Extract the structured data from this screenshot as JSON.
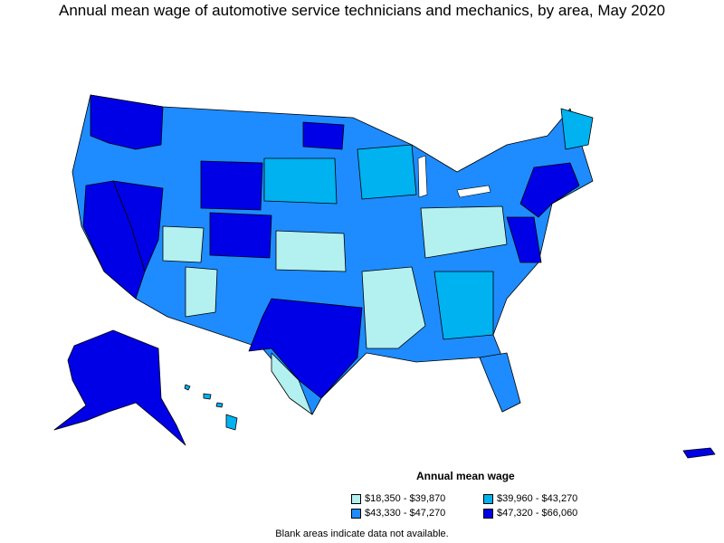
{
  "title": "Annual mean wage of automotive service technicians and mechanics, by area, May 2020",
  "legend": {
    "title": "Annual mean wage",
    "items": [
      {
        "label": "$18,350 - $39,870",
        "color": "#b3f0f0"
      },
      {
        "label": "$39,960 - $43,270",
        "color": "#00b2f0"
      },
      {
        "label": "$43,330 - $47,270",
        "color": "#1e8cff"
      },
      {
        "label": "$47,320 - $66,060",
        "color": "#0000e6"
      }
    ]
  },
  "footnote": "Blank areas indicate data not available."
}
